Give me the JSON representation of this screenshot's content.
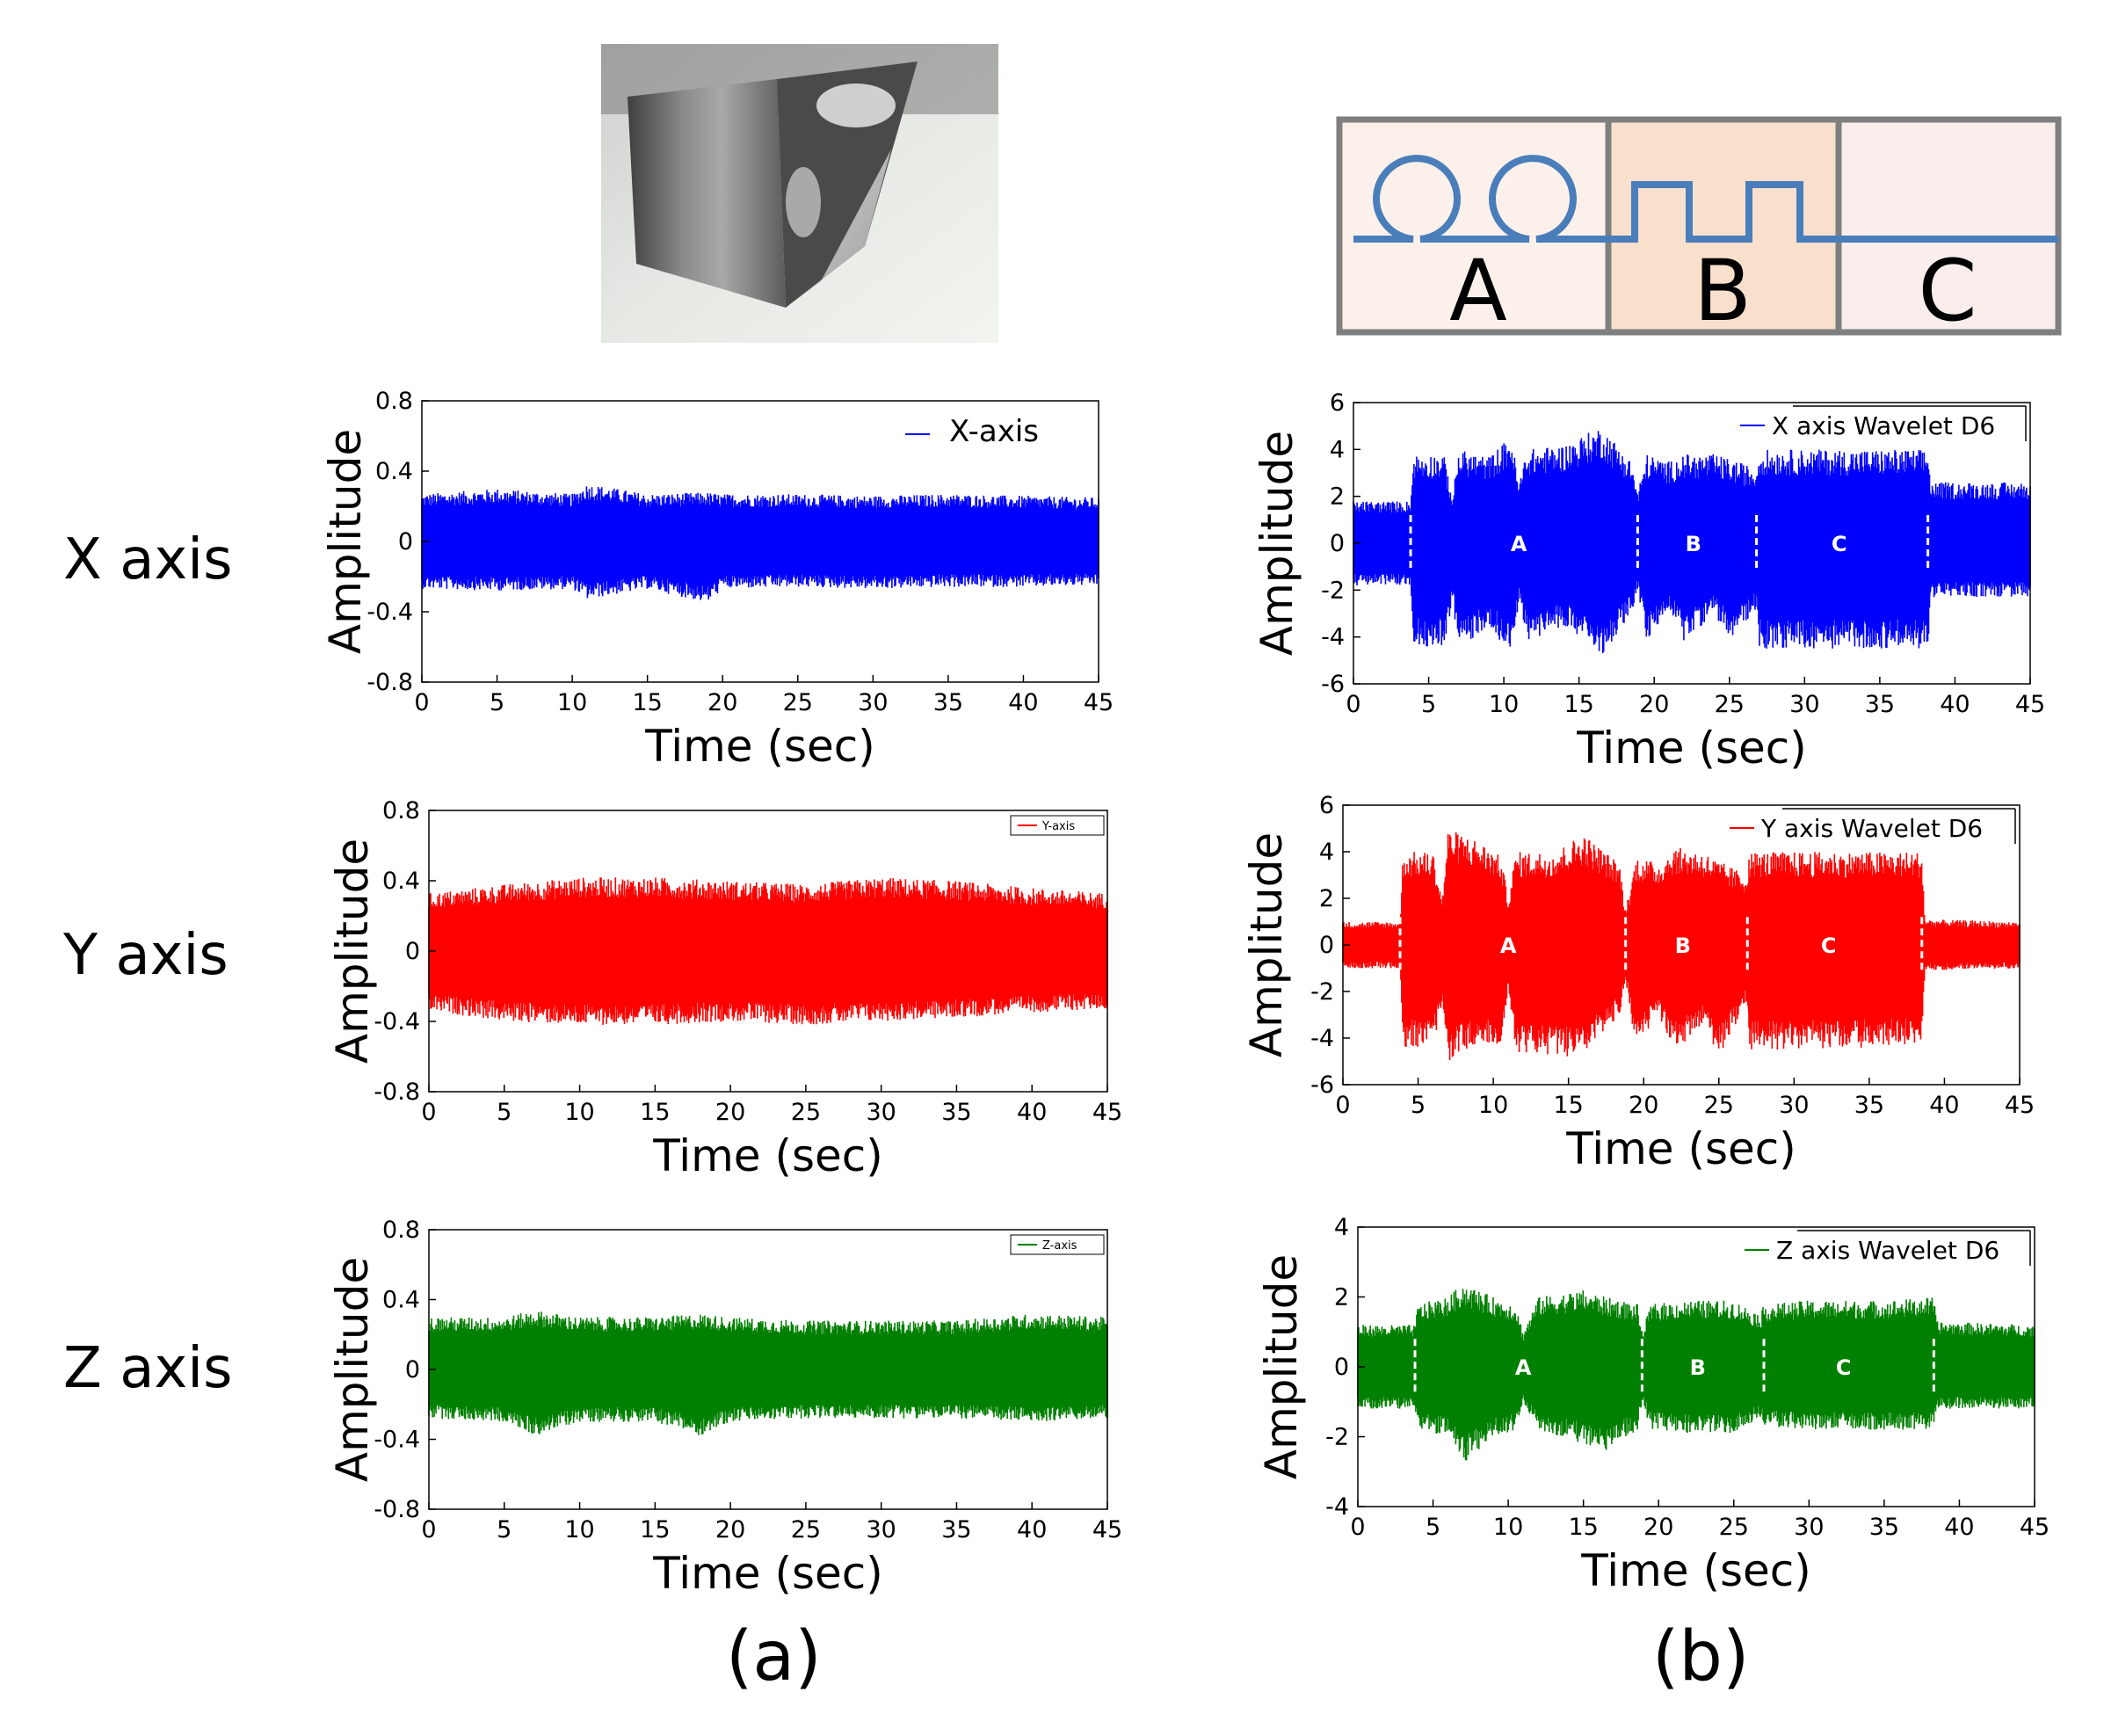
{
  "row_labels": [
    "X axis",
    "Y axis",
    "Z axis"
  ],
  "captions": {
    "left": "(a)",
    "right": "(b)"
  },
  "diagram": {
    "labels": [
      "A",
      "B",
      "C"
    ],
    "line_color": "#4a7ebb",
    "border_color": "#7f7f7f",
    "fills": [
      "#fcf1ea",
      "#f8e0cc",
      "#f9eeec"
    ]
  },
  "photo": {
    "description_icon": "tool-tip-photo"
  },
  "chart_data": [
    {
      "type": "line",
      "id": "raw-x",
      "xlabel": "Time (sec)",
      "ylabel": "Amplitude",
      "xlim": [
        0,
        45
      ],
      "ylim": [
        -0.8,
        0.8
      ],
      "xticks": [
        "0",
        "5",
        "10",
        "15",
        "20",
        "25",
        "30",
        "35",
        "40",
        "45"
      ],
      "yticks": [
        "0.8",
        "0.4",
        "0",
        "-0.4",
        "-0.8"
      ],
      "legend": "X-axis",
      "color": "#0000ff",
      "envelope": {
        "x": [
          0,
          5,
          10,
          11,
          15,
          19,
          20,
          25,
          30,
          35,
          40,
          45
        ],
        "upper": [
          0.27,
          0.3,
          0.27,
          0.33,
          0.27,
          0.28,
          0.27,
          0.27,
          0.26,
          0.27,
          0.26,
          0.25
        ],
        "lower": [
          -0.27,
          -0.28,
          -0.27,
          -0.33,
          -0.27,
          -0.35,
          -0.27,
          -0.26,
          -0.27,
          -0.26,
          -0.26,
          -0.25
        ]
      }
    },
    {
      "type": "line",
      "id": "raw-y",
      "xlabel": "Time (sec)",
      "ylabel": "Amplitude",
      "xlim": [
        0,
        45
      ],
      "ylim": [
        -0.8,
        0.8
      ],
      "xticks": [
        "0",
        "5",
        "10",
        "15",
        "20",
        "25",
        "30",
        "35",
        "40",
        "45"
      ],
      "yticks": [
        "0.8",
        "0.4",
        "0",
        "-0.4",
        "-0.8"
      ],
      "legend": "Y-axis",
      "color": "#ff0000",
      "envelope": {
        "x": [
          0,
          5,
          10,
          15,
          20,
          25,
          30,
          35,
          40,
          45
        ],
        "upper": [
          0.33,
          0.38,
          0.42,
          0.42,
          0.4,
          0.38,
          0.42,
          0.4,
          0.36,
          0.33
        ],
        "lower": [
          -0.34,
          -0.4,
          -0.42,
          -0.42,
          -0.4,
          -0.42,
          -0.4,
          -0.38,
          -0.35,
          -0.33
        ]
      }
    },
    {
      "type": "line",
      "id": "raw-z",
      "xlabel": "Time (sec)",
      "ylabel": "Amplitude",
      "xlim": [
        0,
        45
      ],
      "ylim": [
        -0.8,
        0.8
      ],
      "xticks": [
        "0",
        "5",
        "10",
        "15",
        "20",
        "25",
        "30",
        "35",
        "40",
        "45"
      ],
      "yticks": [
        "0.8",
        "0.4",
        "0",
        "-0.4",
        "-0.8"
      ],
      "legend": "Z-axis",
      "color": "#008000",
      "envelope": {
        "x": [
          0,
          5,
          7,
          10,
          15,
          18,
          20,
          25,
          30,
          35,
          40,
          45
        ],
        "upper": [
          0.3,
          0.3,
          0.34,
          0.3,
          0.3,
          0.32,
          0.3,
          0.28,
          0.28,
          0.28,
          0.32,
          0.3
        ],
        "lower": [
          -0.28,
          -0.3,
          -0.38,
          -0.3,
          -0.3,
          -0.38,
          -0.3,
          -0.28,
          -0.28,
          -0.28,
          -0.3,
          -0.28
        ]
      }
    },
    {
      "type": "line",
      "id": "wavelet-x",
      "xlabel": "Time (sec)",
      "ylabel": "Amplitude",
      "xlim": [
        0,
        45
      ],
      "ylim": [
        -6,
        6
      ],
      "xticks": [
        "0",
        "5",
        "10",
        "15",
        "20",
        "25",
        "30",
        "35",
        "40",
        "45"
      ],
      "yticks": [
        "6",
        "4",
        "2",
        "0",
        "-2",
        "-4",
        "-6"
      ],
      "legend": "X axis Wavelet D6",
      "color": "#0000ff",
      "segments": [
        {
          "label": "A",
          "x": 11
        },
        {
          "label": "B",
          "x": 22.6
        },
        {
          "label": "C",
          "x": 32.3
        }
      ],
      "dividers": [
        3.8,
        18.9,
        26.8,
        38.2
      ],
      "envelope": {
        "x": [
          0,
          3.8,
          4.0,
          6,
          6.6,
          7,
          9,
          10.5,
          11,
          11.5,
          14,
          16.5,
          18.5,
          18.9,
          19.5,
          21,
          22,
          24,
          25,
          26.8,
          27,
          30,
          35,
          38.2,
          38.4,
          45
        ],
        "upper": [
          1.8,
          1.8,
          3.8,
          3.8,
          2.0,
          4.0,
          3.7,
          4.6,
          2.5,
          4.0,
          4.2,
          5.0,
          3.5,
          2.2,
          3.8,
          3.5,
          3.8,
          3.8,
          3.6,
          3.2,
          4.0,
          4.0,
          4.0,
          4.0,
          2.6,
          2.6
        ],
        "lower": [
          -1.8,
          -1.8,
          -4.4,
          -4.4,
          -2.5,
          -4.6,
          -3.5,
          -4.8,
          -2.5,
          -4.2,
          -3.5,
          -4.8,
          -3.0,
          -2.0,
          -4.2,
          -2.8,
          -4.2,
          -3.0,
          -4.2,
          -2.8,
          -4.5,
          -4.5,
          -4.5,
          -4.5,
          -2.3,
          -2.3
        ]
      }
    },
    {
      "type": "line",
      "id": "wavelet-y",
      "xlabel": "Time (sec)",
      "ylabel": "Amplitude",
      "xlim": [
        0,
        45
      ],
      "ylim": [
        -6,
        6
      ],
      "xticks": [
        "0",
        "5",
        "10",
        "15",
        "20",
        "25",
        "30",
        "35",
        "40",
        "45"
      ],
      "yticks": [
        "6",
        "4",
        "2",
        "0",
        "-2",
        "-4",
        "-6"
      ],
      "legend": "Y axis Wavelet D6",
      "color": "#ff0000",
      "segments": [
        {
          "label": "A",
          "x": 11
        },
        {
          "label": "B",
          "x": 22.6
        },
        {
          "label": "C",
          "x": 32.3
        }
      ],
      "dividers": [
        3.8,
        18.8,
        26.9,
        38.5
      ],
      "envelope": {
        "x": [
          0,
          3.8,
          4.0,
          6,
          6.6,
          7,
          9,
          10.5,
          11,
          11.5,
          14,
          16,
          18.4,
          18.8,
          19.5,
          21,
          22,
          24,
          25,
          26.9,
          27,
          30,
          35,
          38.5,
          38.7,
          45
        ],
        "upper": [
          1.0,
          1.0,
          4.0,
          4.0,
          2.0,
          5.0,
          4.5,
          3.8,
          2.0,
          4.0,
          4.0,
          4.8,
          3.5,
          1.5,
          3.8,
          3.5,
          4.2,
          4.0,
          3.6,
          3.0,
          4.0,
          4.0,
          4.0,
          4.0,
          1.1,
          1.0
        ],
        "lower": [
          -1.0,
          -1.0,
          -4.4,
          -4.4,
          -2.5,
          -5.0,
          -4.2,
          -4.5,
          -2.0,
          -4.6,
          -4.8,
          -4.8,
          -3.0,
          -1.5,
          -4.5,
          -3.0,
          -4.6,
          -3.5,
          -4.8,
          -2.5,
          -4.5,
          -4.5,
          -4.4,
          -4.3,
          -1.1,
          -1.0
        ]
      }
    },
    {
      "type": "line",
      "id": "wavelet-z",
      "xlabel": "Time (sec)",
      "ylabel": "Amplitude",
      "xlim": [
        0,
        45
      ],
      "ylim": [
        -4,
        4
      ],
      "xticks": [
        "0",
        "5",
        "10",
        "15",
        "20",
        "25",
        "30",
        "35",
        "40",
        "45"
      ],
      "yticks": [
        "4",
        "2",
        "0",
        "-2",
        "-4"
      ],
      "legend": "Z axis Wavelet D6",
      "color": "#008000",
      "segments": [
        {
          "label": "A",
          "x": 11
        },
        {
          "label": "B",
          "x": 22.6
        },
        {
          "label": "C",
          "x": 32.3
        }
      ],
      "dividers": [
        3.8,
        18.9,
        27.0,
        38.3
      ],
      "envelope": {
        "x": [
          0,
          3.8,
          4.0,
          6,
          7,
          9,
          10.5,
          11,
          12,
          15,
          16.5,
          18.6,
          18.9,
          19.5,
          22,
          25,
          26.8,
          27,
          30,
          35,
          38.3,
          38.5,
          45
        ],
        "upper": [
          1.2,
          1.2,
          1.8,
          2.0,
          2.4,
          2.0,
          1.8,
          1.0,
          2.0,
          2.2,
          2.0,
          1.8,
          1.0,
          1.8,
          1.9,
          1.9,
          1.5,
          1.8,
          1.9,
          1.9,
          2.0,
          1.3,
          1.2
        ],
        "lower": [
          -1.2,
          -1.2,
          -1.8,
          -2.0,
          -2.8,
          -2.0,
          -1.8,
          -1.0,
          -1.8,
          -2.2,
          -2.4,
          -1.8,
          -1.0,
          -1.8,
          -1.9,
          -1.9,
          -1.5,
          -1.7,
          -1.8,
          -1.8,
          -1.8,
          -1.2,
          -1.2
        ]
      }
    }
  ]
}
